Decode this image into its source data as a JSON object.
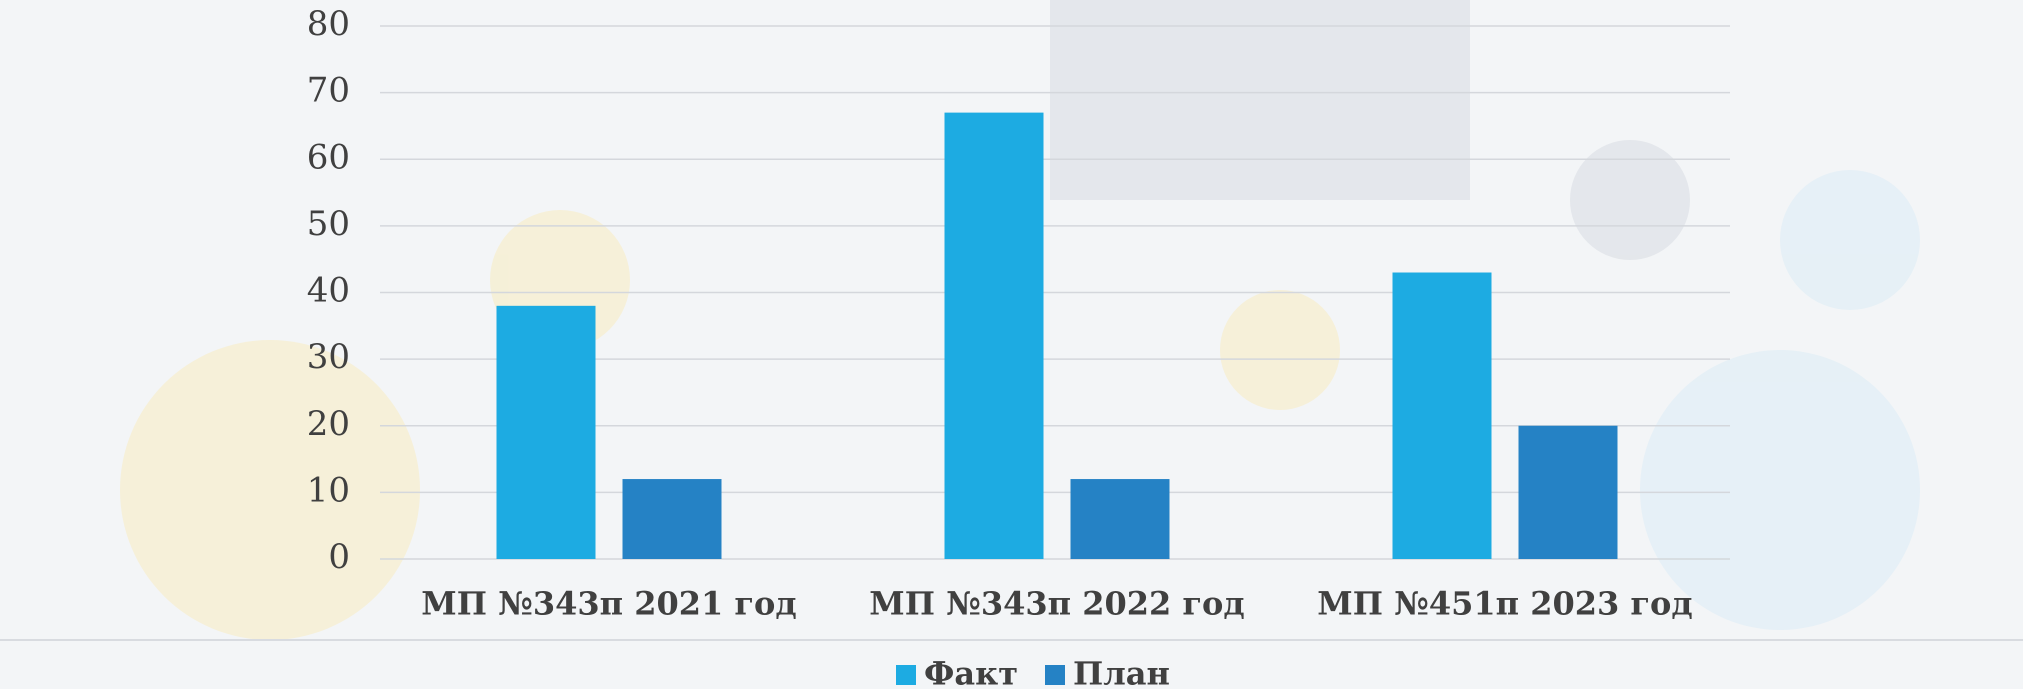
{
  "chart_data": {
    "type": "bar",
    "categories": [
      "МП №343п 2021 год",
      "МП №343п 2022 год",
      "МП №451п 2023 год"
    ],
    "series": [
      {
        "name": "Факт",
        "color": "#1dabe2",
        "values": [
          38,
          67,
          43
        ]
      },
      {
        "name": "План",
        "color": "#2582c5",
        "values": [
          12,
          12,
          20
        ]
      }
    ],
    "ylim": [
      0,
      80
    ],
    "yticks": [
      0,
      10,
      20,
      30,
      40,
      50,
      60,
      70,
      80
    ],
    "grid": true,
    "legend": "bottom"
  }
}
